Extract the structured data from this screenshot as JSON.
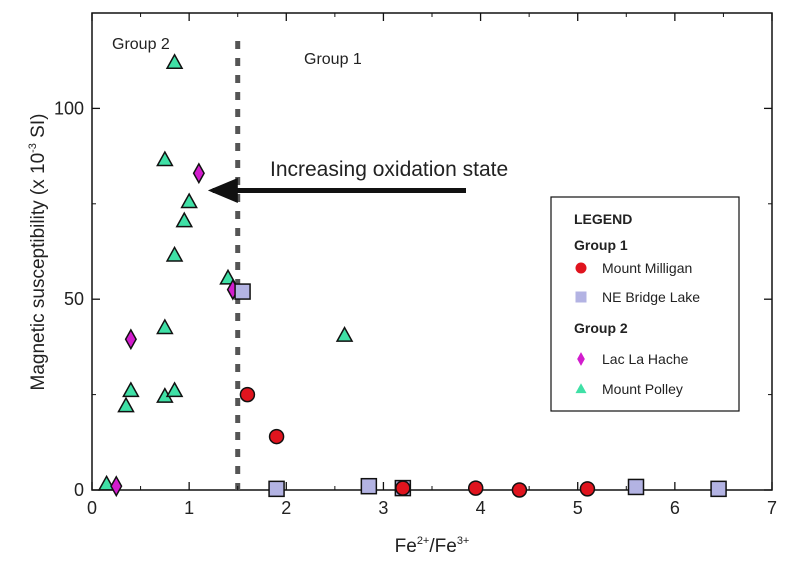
{
  "chart_data": {
    "type": "scatter",
    "title": "",
    "xlabel_base": "Fe",
    "xlabel_sup1": "2+",
    "xlabel_mid": "/Fe",
    "xlabel_sup2": "3+",
    "ylabel_main": "Magnetic susceptibility (x 10",
    "ylabel_sup": "-3",
    "ylabel_end": " SI)",
    "xlim": [
      0,
      7
    ],
    "ylim": [
      0,
      125
    ],
    "x_ticks": [
      0,
      1,
      2,
      3,
      4,
      5,
      6,
      7
    ],
    "y_ticks": [
      0,
      50,
      100
    ],
    "grid": false,
    "legend_position": "right",
    "annotations": {
      "group2_label": "Group 2",
      "group1_label": "Group 1",
      "arrow_label": "Increasing oxidation state",
      "divider_x": 1.5,
      "arrow_from": [
        3.85,
        78.5
      ],
      "arrow_to": [
        1.12,
        78.5
      ]
    },
    "legend": {
      "title": "LEGEND",
      "group1_header": "Group 1",
      "group2_header": "Group 2"
    },
    "series": [
      {
        "name": "Mount Milligan",
        "group": "Group 1",
        "marker": "circle",
        "color": "#e0141e",
        "points": [
          [
            1.6,
            25
          ],
          [
            1.9,
            14
          ],
          [
            3.2,
            0.5
          ],
          [
            3.95,
            0.5
          ],
          [
            4.4,
            0
          ],
          [
            5.1,
            0.3
          ]
        ]
      },
      {
        "name": "NE Bridge Lake",
        "group": "Group 1",
        "marker": "square",
        "color": "#b3b3e3",
        "points": [
          [
            1.55,
            52
          ],
          [
            1.9,
            0.3
          ],
          [
            2.85,
            1
          ],
          [
            3.2,
            0.5
          ],
          [
            5.6,
            0.8
          ],
          [
            6.45,
            0.3
          ]
        ]
      },
      {
        "name": "Lac La Hache",
        "group": "Group 2",
        "marker": "diamond",
        "color": "#d21ccd",
        "points": [
          [
            0.25,
            1
          ],
          [
            0.4,
            39.5
          ],
          [
            1.1,
            83
          ],
          [
            1.45,
            52.5
          ]
        ]
      },
      {
        "name": "Mount Polley",
        "group": "Group 2",
        "marker": "triangle",
        "color": "#3fe0a6",
        "points": [
          [
            0.15,
            1.5
          ],
          [
            0.35,
            22
          ],
          [
            0.4,
            26
          ],
          [
            0.75,
            24.5
          ],
          [
            0.85,
            26
          ],
          [
            0.75,
            42.5
          ],
          [
            0.85,
            112
          ],
          [
            0.75,
            86.5
          ],
          [
            1.0,
            75.5
          ],
          [
            0.95,
            70.5
          ],
          [
            0.85,
            61.5
          ],
          [
            1.4,
            55.5
          ],
          [
            2.6,
            40.5
          ]
        ]
      }
    ]
  },
  "colors": {
    "divider": "#555555",
    "axis": "#111111"
  }
}
